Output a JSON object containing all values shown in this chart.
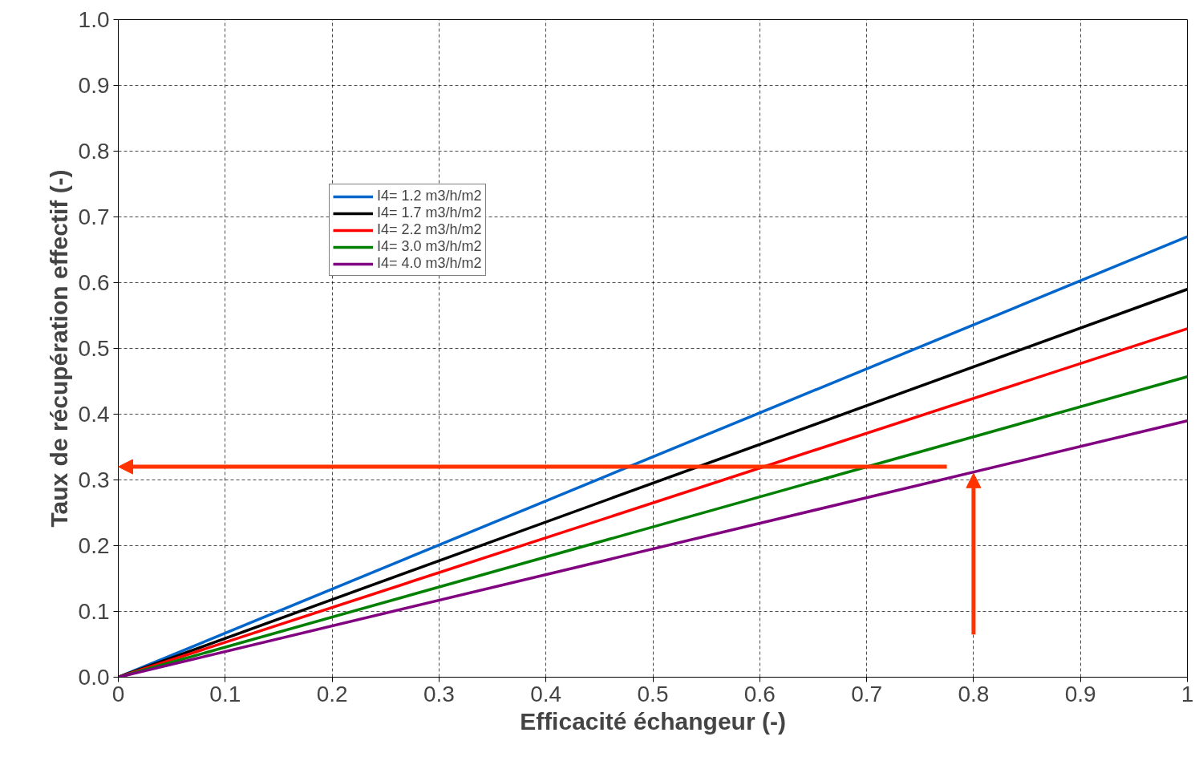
{
  "chart_data": {
    "type": "line",
    "xlabel": "Efficacité échangeur (-)",
    "ylabel": "Taux de récupération effectif (-)",
    "x": [
      0,
      1
    ],
    "series": [
      {
        "name": "I4= 1.2 m3/h/m2",
        "color": "#0066cc",
        "values": [
          0,
          0.67
        ]
      },
      {
        "name": "I4= 1.7 m3/h/m2",
        "color": "#000000",
        "values": [
          0,
          0.59
        ]
      },
      {
        "name": "I4= 2.2 m3/h/m2",
        "color": "#ff0000",
        "values": [
          0,
          0.53
        ]
      },
      {
        "name": "I4= 3.0 m3/h/m2",
        "color": "#008000",
        "values": [
          0,
          0.457
        ]
      },
      {
        "name": "I4= 4.0 m3/h/m2",
        "color": "#800080",
        "values": [
          0,
          0.39
        ]
      }
    ],
    "xlim": [
      0,
      1
    ],
    "ylim": [
      0,
      1
    ],
    "xticks": [
      0,
      0.1,
      0.2,
      0.3,
      0.4,
      0.5,
      0.6,
      0.7,
      0.8,
      0.9,
      1
    ],
    "yticks": [
      {
        "value": 0,
        "label": "0.0"
      },
      0.1,
      0.2,
      0.3,
      0.4,
      0.5,
      0.6,
      0.7,
      0.8,
      0.9,
      {
        "value": 1,
        "label": "1.0"
      }
    ],
    "grid": true,
    "legend": "top left",
    "marker": "none",
    "line_style": "solid"
  }
}
